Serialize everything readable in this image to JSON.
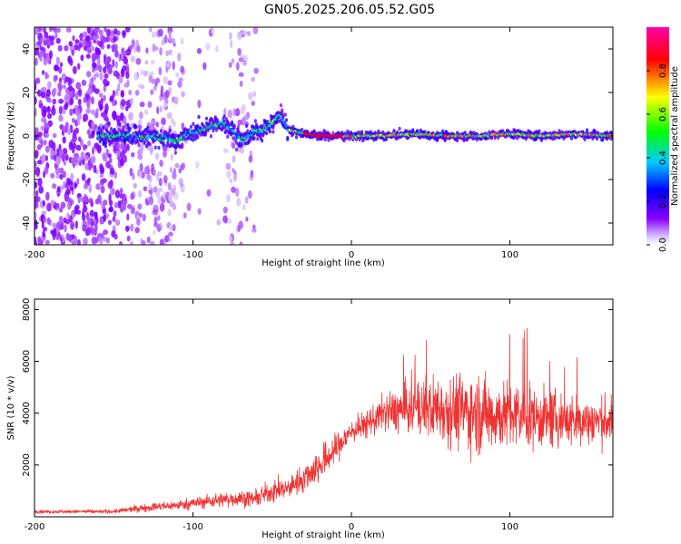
{
  "title": "GN05.2025.206.05.52.G05",
  "colors": {
    "snr_line": "#ee3333",
    "ridge": "#dd2222",
    "background": "#ffffff"
  },
  "chart_data": [
    {
      "type": "heatmap",
      "xlabel": "Height of straight line (km)",
      "ylabel": "Frequency (Hz)",
      "xlim": [
        -200,
        165
      ],
      "ylim": [
        -50,
        50
      ],
      "xticks": [
        -200,
        -100,
        0,
        100
      ],
      "xtick_labels": [
        "-200",
        "-100",
        "0",
        "100"
      ],
      "yticks": [
        -40,
        -20,
        0,
        20,
        40
      ],
      "ytick_labels": [
        "-40",
        "-20",
        "0",
        "20",
        "40"
      ],
      "colorbar": {
        "label": "Normalized spectral amplitude",
        "range": [
          0,
          1
        ],
        "ticks": [
          0.0,
          0.2,
          0.4,
          0.6,
          0.8
        ],
        "tick_labels": [
          "0.0",
          "0.2",
          "0.4",
          "0.6",
          "0.8"
        ],
        "colormap": "rainbow (purple to blue to cyan to green to yellow to red to magenta)"
      },
      "ridge": {
        "description": "Dominant spectral energy near 0 Hz; noisy scatter at low heights, coherent ridge above about -40 km",
        "x": [
          -155,
          -130,
          -110,
          -100,
          -90,
          -80,
          -70,
          -60,
          -50,
          -45,
          -40,
          -30,
          -20,
          0,
          20,
          40,
          60,
          80,
          100,
          120,
          140,
          160
        ],
        "frequency": [
          0,
          0,
          -2,
          2,
          4,
          6,
          -2,
          2,
          6,
          10,
          3,
          1,
          0,
          0,
          0,
          1,
          0,
          0,
          1,
          0,
          1,
          0
        ]
      }
    },
    {
      "type": "line",
      "xlabel": "Height of straight line (km)",
      "ylabel": "SNR (10 * v/v)",
      "xlim": [
        -200,
        165
      ],
      "ylim": [
        0,
        8400
      ],
      "xticks": [
        -200,
        -100,
        0,
        100
      ],
      "xtick_labels": [
        "-200",
        "-100",
        "0",
        "100"
      ],
      "yticks": [
        2000,
        4000,
        6000,
        8000
      ],
      "ytick_labels": [
        "2000",
        "4000",
        "6000",
        "8000"
      ],
      "envelope": {
        "description": "Approximate mean SNR with its fluctuation amplitude, read from the trace",
        "x": [
          -200,
          -150,
          -130,
          -110,
          -90,
          -75,
          -60,
          -50,
          -40,
          -30,
          -20,
          -10,
          0,
          10,
          20,
          40,
          60,
          80,
          100,
          120,
          140,
          165
        ],
        "mean": [
          200,
          200,
          350,
          450,
          600,
          700,
          700,
          1000,
          1100,
          1500,
          2000,
          2600,
          3300,
          3600,
          4000,
          4200,
          4200,
          4000,
          3900,
          3800,
          3700,
          3700
        ],
        "spread": [
          80,
          100,
          200,
          250,
          350,
          400,
          400,
          600,
          500,
          700,
          900,
          800,
          600,
          700,
          900,
          1400,
          1800,
          2000,
          1700,
          1500,
          1300,
          1200
        ]
      }
    }
  ]
}
